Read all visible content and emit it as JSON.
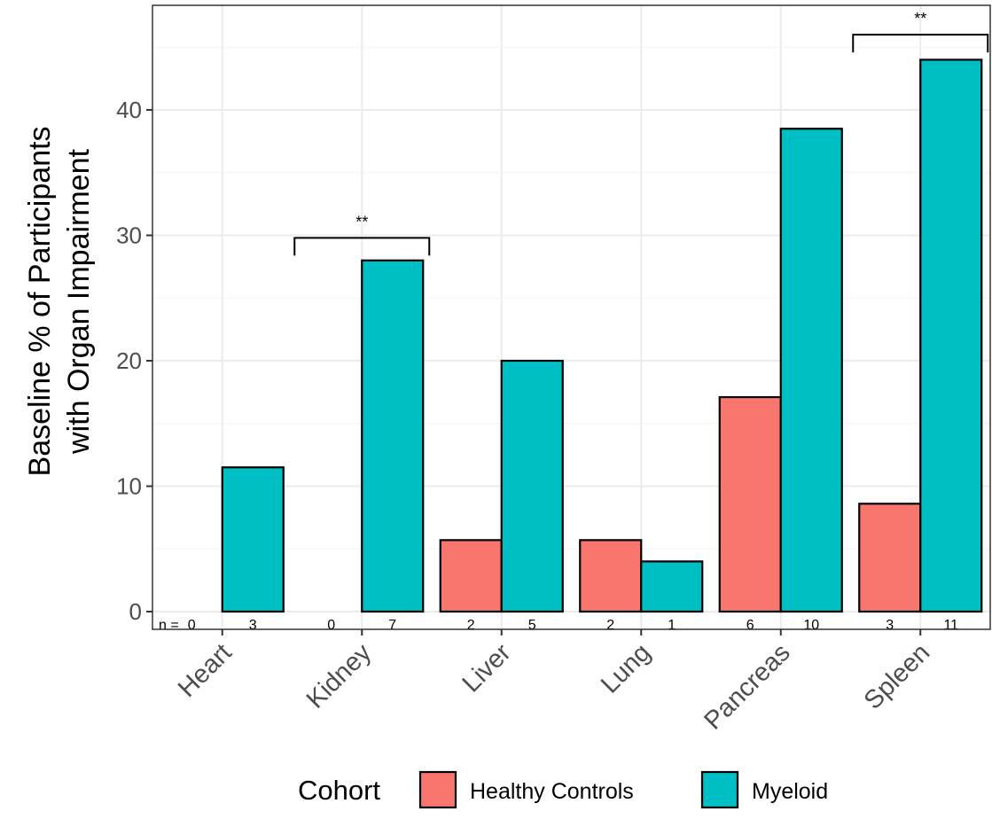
{
  "chart_data": {
    "type": "bar",
    "ylabel": [
      "Baseline % of Participants",
      "with Organ Impairment"
    ],
    "xlabel": "",
    "ylim": [
      0,
      46.5
    ],
    "y_ticks": [
      0,
      10,
      20,
      30,
      40
    ],
    "grid": true,
    "categories": [
      "Heart",
      "Kidney",
      "Liver",
      "Lung",
      "Pancreas",
      "Spleen"
    ],
    "series": [
      {
        "name": "Healthy Controls",
        "color": "#F8766D",
        "values": [
          0,
          0,
          5.7,
          5.7,
          17.1,
          8.6
        ],
        "n": [
          "0",
          "0",
          "2",
          "2",
          "6",
          "3"
        ]
      },
      {
        "name": "Myeloid",
        "color": "#00BFC4",
        "values": [
          11.5,
          28,
          20,
          4,
          38.5,
          44
        ],
        "n": [
          "3",
          "7",
          "5",
          "1",
          "10",
          "11"
        ]
      }
    ],
    "n_prefix": "n =",
    "significance": [
      {
        "category": "Kidney",
        "label": "**",
        "y": 29.8
      },
      {
        "category": "Spleen",
        "label": "**",
        "y": 46
      }
    ],
    "legend": {
      "title": "Cohort",
      "position": "bottom"
    }
  }
}
